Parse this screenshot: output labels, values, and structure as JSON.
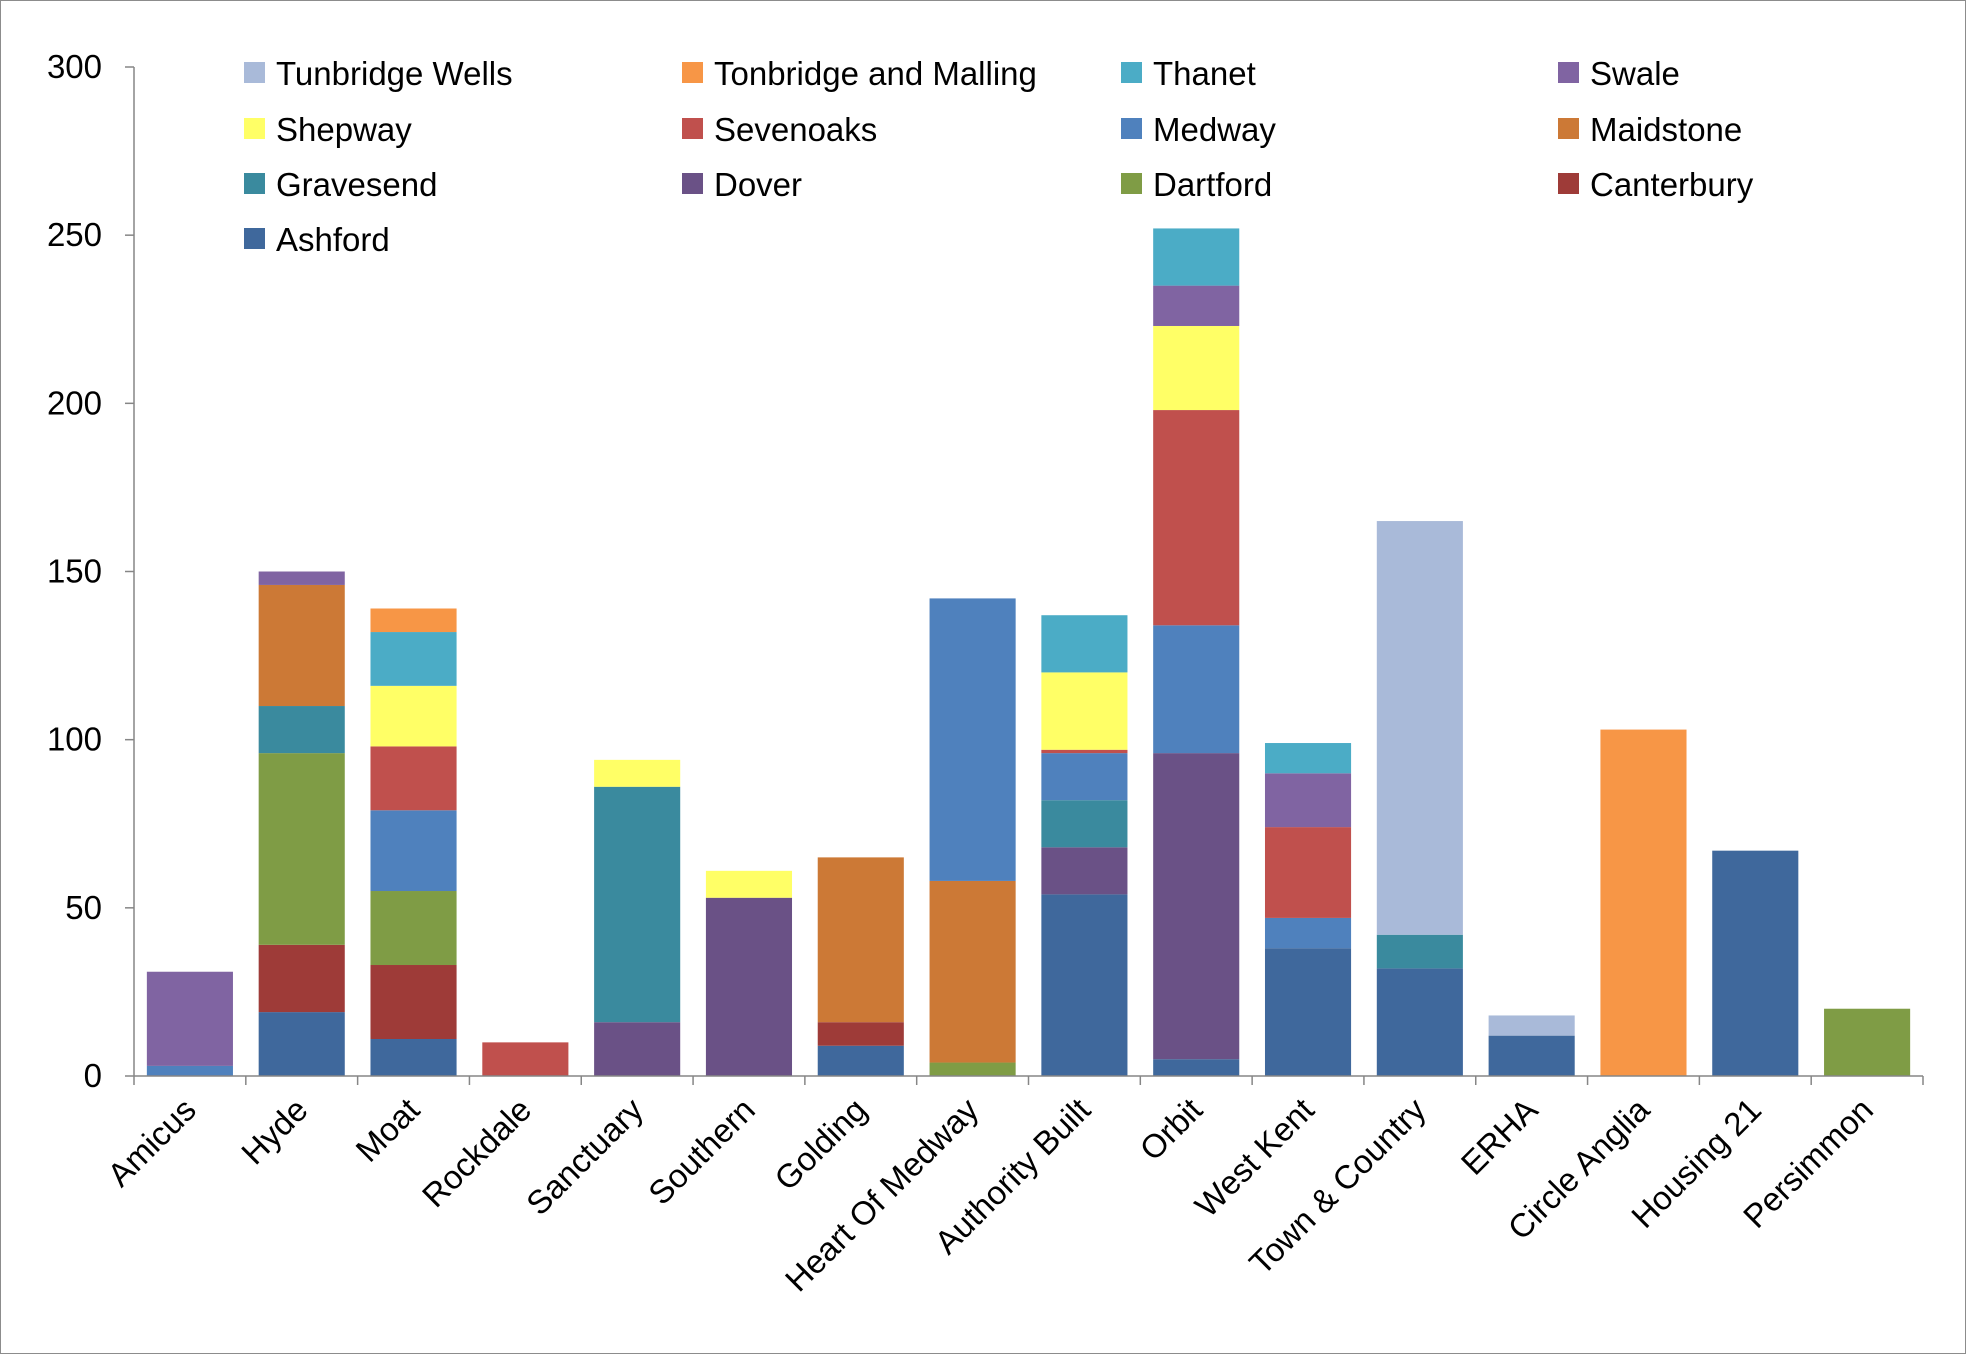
{
  "chart_data": {
    "type": "bar",
    "stacked": true,
    "ylim": [
      0,
      300
    ],
    "yticks": [
      0,
      50,
      100,
      150,
      200,
      250,
      300
    ],
    "grid": false,
    "legend_position": "top",
    "categories": [
      "Amicus",
      "Hyde",
      "Moat",
      "Rockdale",
      "Sanctuary",
      "Southern",
      "Golding",
      "Heart Of Medway",
      "Authority Built",
      "Orbit",
      "West Kent",
      "Town & Country",
      "ERHA",
      "Circle Anglia",
      "Housing 21",
      "Persimmon"
    ],
    "series": [
      {
        "name": "Ashford",
        "color": "#3F689C",
        "values": [
          0,
          19,
          11,
          0,
          0,
          0,
          9,
          0,
          54,
          5,
          38,
          32,
          12,
          0,
          67,
          0
        ]
      },
      {
        "name": "Canterbury",
        "color": "#9E3B38",
        "values": [
          0,
          20,
          22,
          0,
          0,
          0,
          7,
          0,
          0,
          0,
          0,
          0,
          0,
          0,
          0,
          0
        ]
      },
      {
        "name": "Dartford",
        "color": "#7F9C45",
        "values": [
          0,
          57,
          22,
          0,
          0,
          0,
          0,
          4,
          0,
          0,
          0,
          0,
          0,
          0,
          0,
          20
        ]
      },
      {
        "name": "Dover",
        "color": "#6A5186",
        "values": [
          0,
          0,
          0,
          0,
          16,
          53,
          0,
          0,
          14,
          91,
          0,
          0,
          0,
          0,
          0,
          0
        ]
      },
      {
        "name": "Gravesend",
        "color": "#3A8A9E",
        "values": [
          0,
          14,
          0,
          0,
          70,
          0,
          0,
          0,
          14,
          0,
          0,
          10,
          0,
          0,
          0,
          0
        ]
      },
      {
        "name": "Maidstone",
        "color": "#CC7936",
        "values": [
          0,
          36,
          0,
          0,
          0,
          0,
          49,
          54,
          0,
          0,
          0,
          0,
          0,
          0,
          0,
          0
        ]
      },
      {
        "name": "Medway",
        "color": "#4F81BD",
        "values": [
          3,
          0,
          24,
          0,
          0,
          0,
          0,
          84,
          14,
          38,
          9,
          0,
          0,
          0,
          0,
          0
        ]
      },
      {
        "name": "Sevenoaks",
        "color": "#C0504D",
        "values": [
          0,
          0,
          19,
          10,
          0,
          0,
          0,
          0,
          1,
          64,
          27,
          0,
          0,
          0,
          0,
          0
        ]
      },
      {
        "name": "Shepway",
        "color": "#FFFF66",
        "values": [
          0,
          0,
          18,
          0,
          8,
          8,
          0,
          0,
          23,
          25,
          0,
          0,
          0,
          0,
          0,
          0
        ]
      },
      {
        "name": "Swale",
        "color": "#8064A2",
        "values": [
          28,
          4,
          0,
          0,
          0,
          0,
          0,
          0,
          0,
          12,
          16,
          0,
          0,
          0,
          0,
          0
        ]
      },
      {
        "name": "Thanet",
        "color": "#4BACC6",
        "values": [
          0,
          0,
          16,
          0,
          0,
          0,
          0,
          0,
          17,
          17,
          9,
          0,
          0,
          0,
          0,
          0
        ]
      },
      {
        "name": "Tonbridge and Malling",
        "color": "#F79646",
        "values": [
          0,
          0,
          7,
          0,
          0,
          0,
          0,
          0,
          0,
          0,
          0,
          0,
          0,
          103,
          0,
          0
        ]
      },
      {
        "name": "Tunbridge Wells",
        "color": "#A9BAD9",
        "values": [
          0,
          0,
          0,
          0,
          0,
          0,
          0,
          0,
          0,
          0,
          0,
          123,
          6,
          0,
          0,
          0
        ]
      }
    ],
    "legend_order": [
      "Tunbridge Wells",
      "Tonbridge and Malling",
      "Thanet",
      "Swale",
      "Shepway",
      "Sevenoaks",
      "Medway",
      "Maidstone",
      "Gravesend",
      "Dover",
      "Dartford",
      "Canterbury",
      "Ashford"
    ]
  }
}
